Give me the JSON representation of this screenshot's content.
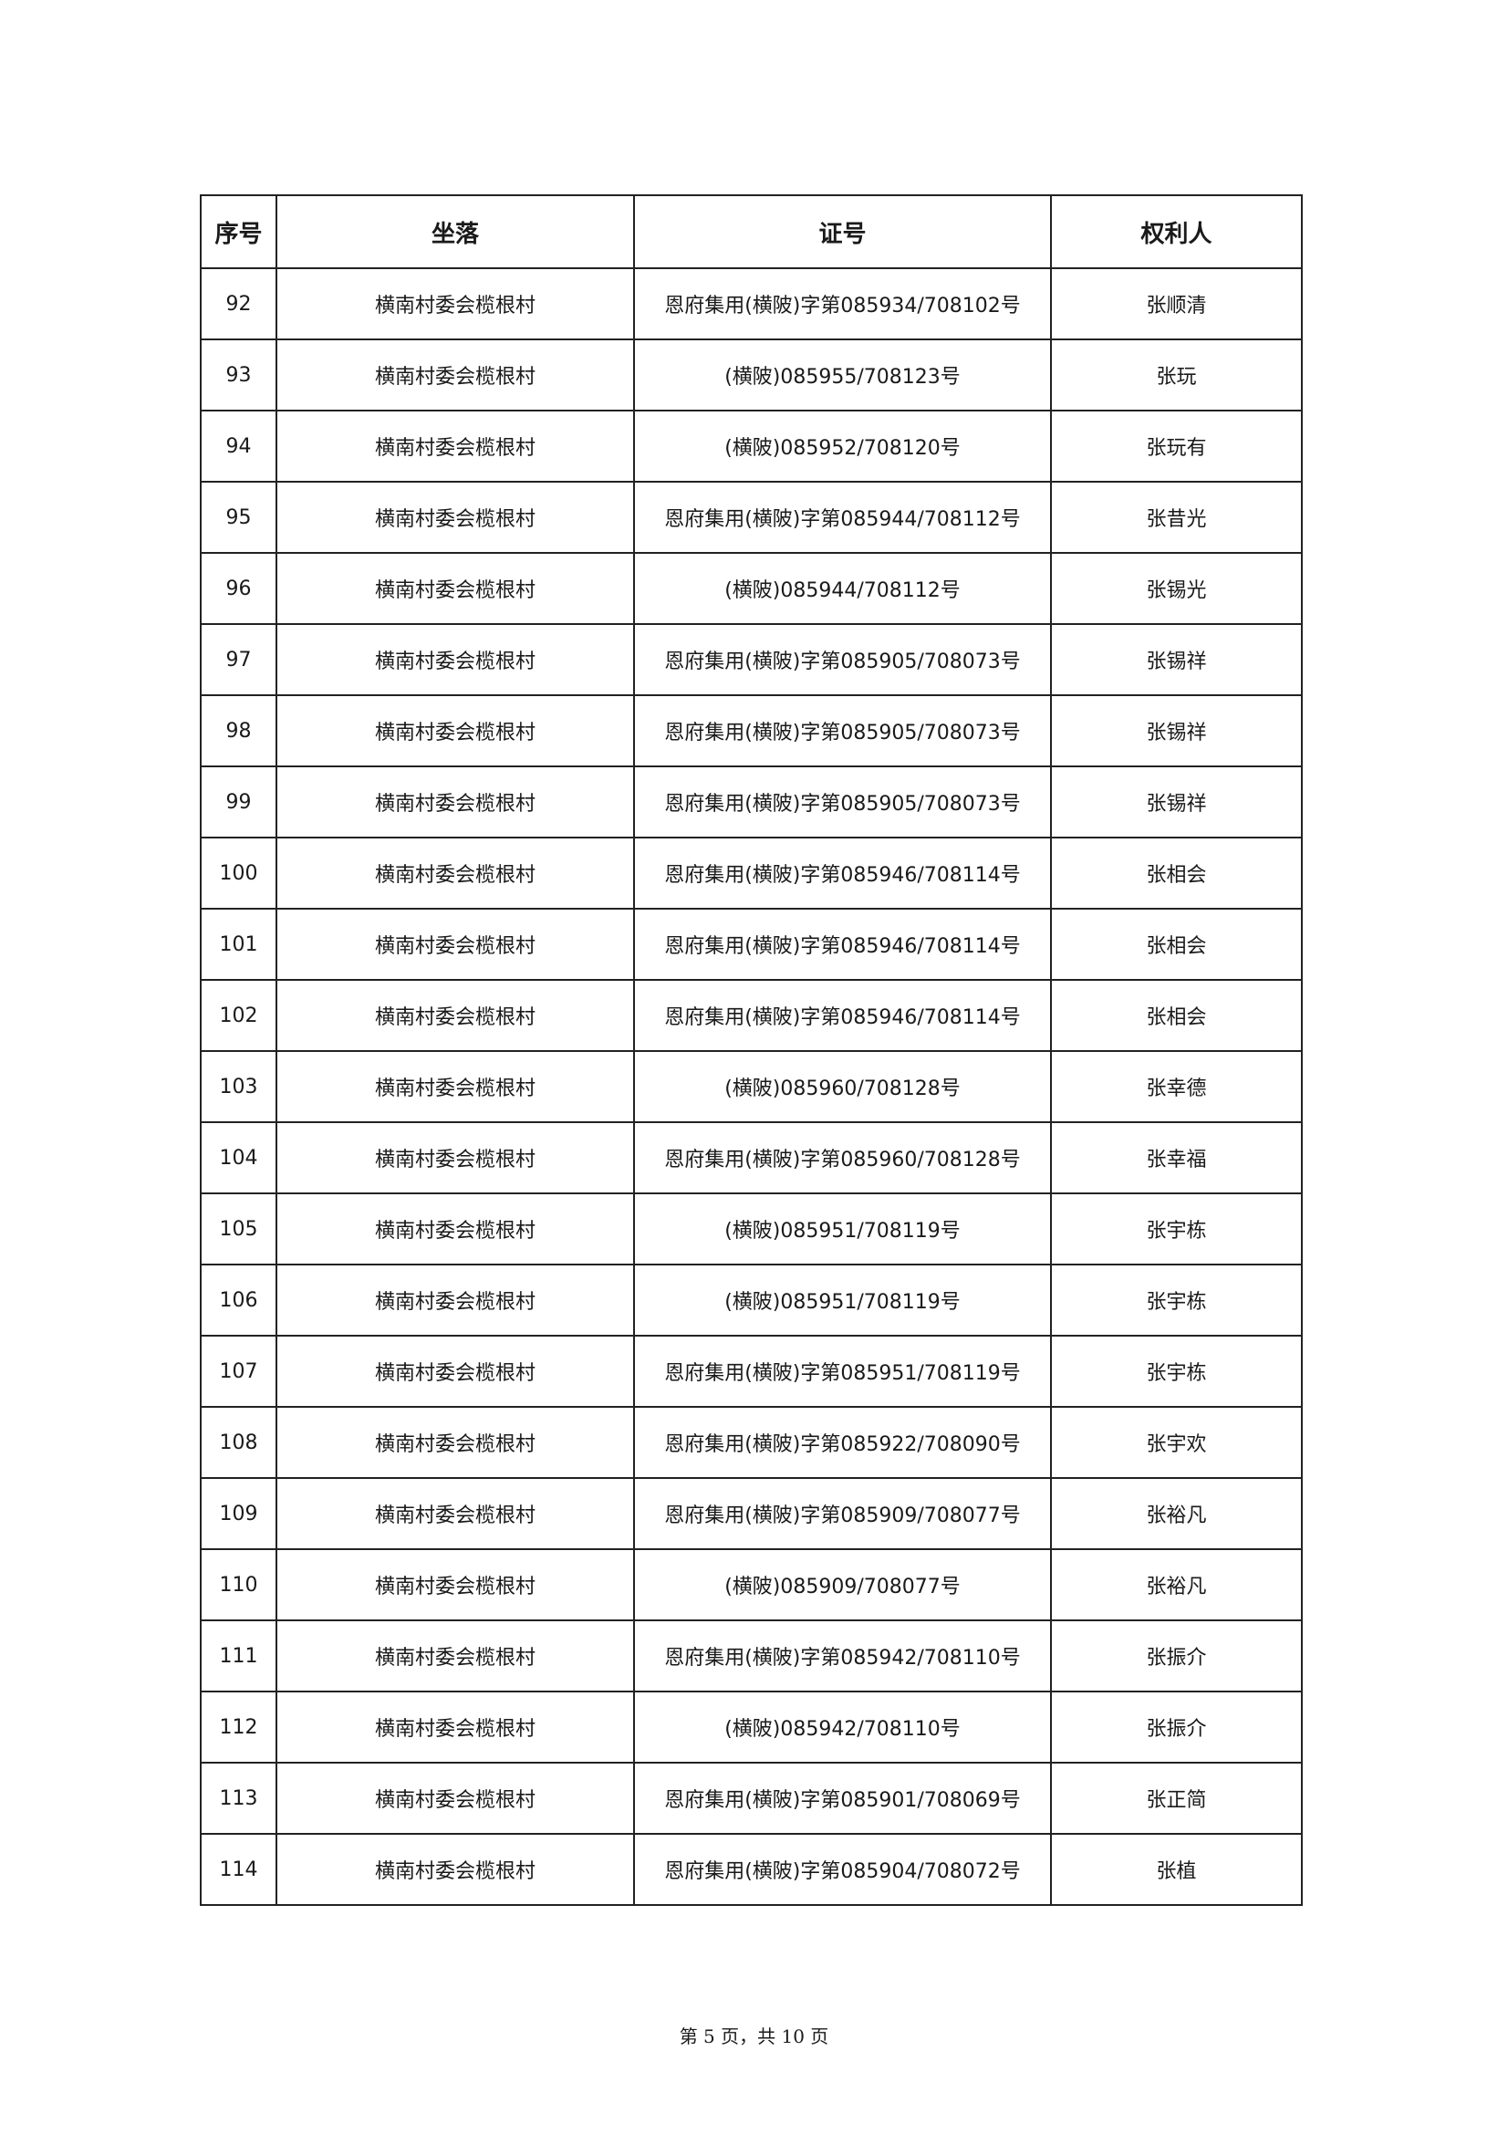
{
  "table": {
    "headers": [
      "序号",
      "坐落",
      "证号",
      "权利人"
    ],
    "rows": [
      [
        "92",
        "横南村委会榄根村",
        "恩府集用(横陂)字第085934/708102号",
        "张顺清"
      ],
      [
        "93",
        "横南村委会榄根村",
        "(横陂)085955/708123号",
        "张玩"
      ],
      [
        "94",
        "横南村委会榄根村",
        "(横陂)085952/708120号",
        "张玩有"
      ],
      [
        "95",
        "横南村委会榄根村",
        "恩府集用(横陂)字第085944/708112号",
        "张昔光"
      ],
      [
        "96",
        "横南村委会榄根村",
        "(横陂)085944/708112号",
        "张锡光"
      ],
      [
        "97",
        "横南村委会榄根村",
        "恩府集用(横陂)字第085905/708073号",
        "张锡祥"
      ],
      [
        "98",
        "横南村委会榄根村",
        "恩府集用(横陂)字第085905/708073号",
        "张锡祥"
      ],
      [
        "99",
        "横南村委会榄根村",
        "恩府集用(横陂)字第085905/708073号",
        "张锡祥"
      ],
      [
        "100",
        "横南村委会榄根村",
        "恩府集用(横陂)字第085946/708114号",
        "张相会"
      ],
      [
        "101",
        "横南村委会榄根村",
        "恩府集用(横陂)字第085946/708114号",
        "张相会"
      ],
      [
        "102",
        "横南村委会榄根村",
        "恩府集用(横陂)字第085946/708114号",
        "张相会"
      ],
      [
        "103",
        "横南村委会榄根村",
        "(横陂)085960/708128号",
        "张幸德"
      ],
      [
        "104",
        "横南村委会榄根村",
        "恩府集用(横陂)字第085960/708128号",
        "张幸福"
      ],
      [
        "105",
        "横南村委会榄根村",
        "(横陂)085951/708119号",
        "张宇栋"
      ],
      [
        "106",
        "横南村委会榄根村",
        "(横陂)085951/708119号",
        "张宇栋"
      ],
      [
        "107",
        "横南村委会榄根村",
        "恩府集用(横陂)字第085951/708119号",
        "张宇栋"
      ],
      [
        "108",
        "横南村委会榄根村",
        "恩府集用(横陂)字第085922/708090号",
        "张宇欢"
      ],
      [
        "109",
        "横南村委会榄根村",
        "恩府集用(横陂)字第085909/708077号",
        "张裕凡"
      ],
      [
        "110",
        "横南村委会榄根村",
        "(横陂)085909/708077号",
        "张裕凡"
      ],
      [
        "111",
        "横南村委会榄根村",
        "恩府集用(横陂)字第085942/708110号",
        "张振介"
      ],
      [
        "112",
        "横南村委会榄根村",
        "(横陂)085942/708110号",
        "张振介"
      ],
      [
        "113",
        "横南村委会榄根村",
        "恩府集用(横陂)字第085901/708069号",
        "张正简"
      ],
      [
        "114",
        "横南村委会榄根村",
        "恩府集用(横陂)字第085904/708072号",
        "张植"
      ]
    ]
  },
  "footer": {
    "page_label": "第 5 页，共 10 页"
  }
}
